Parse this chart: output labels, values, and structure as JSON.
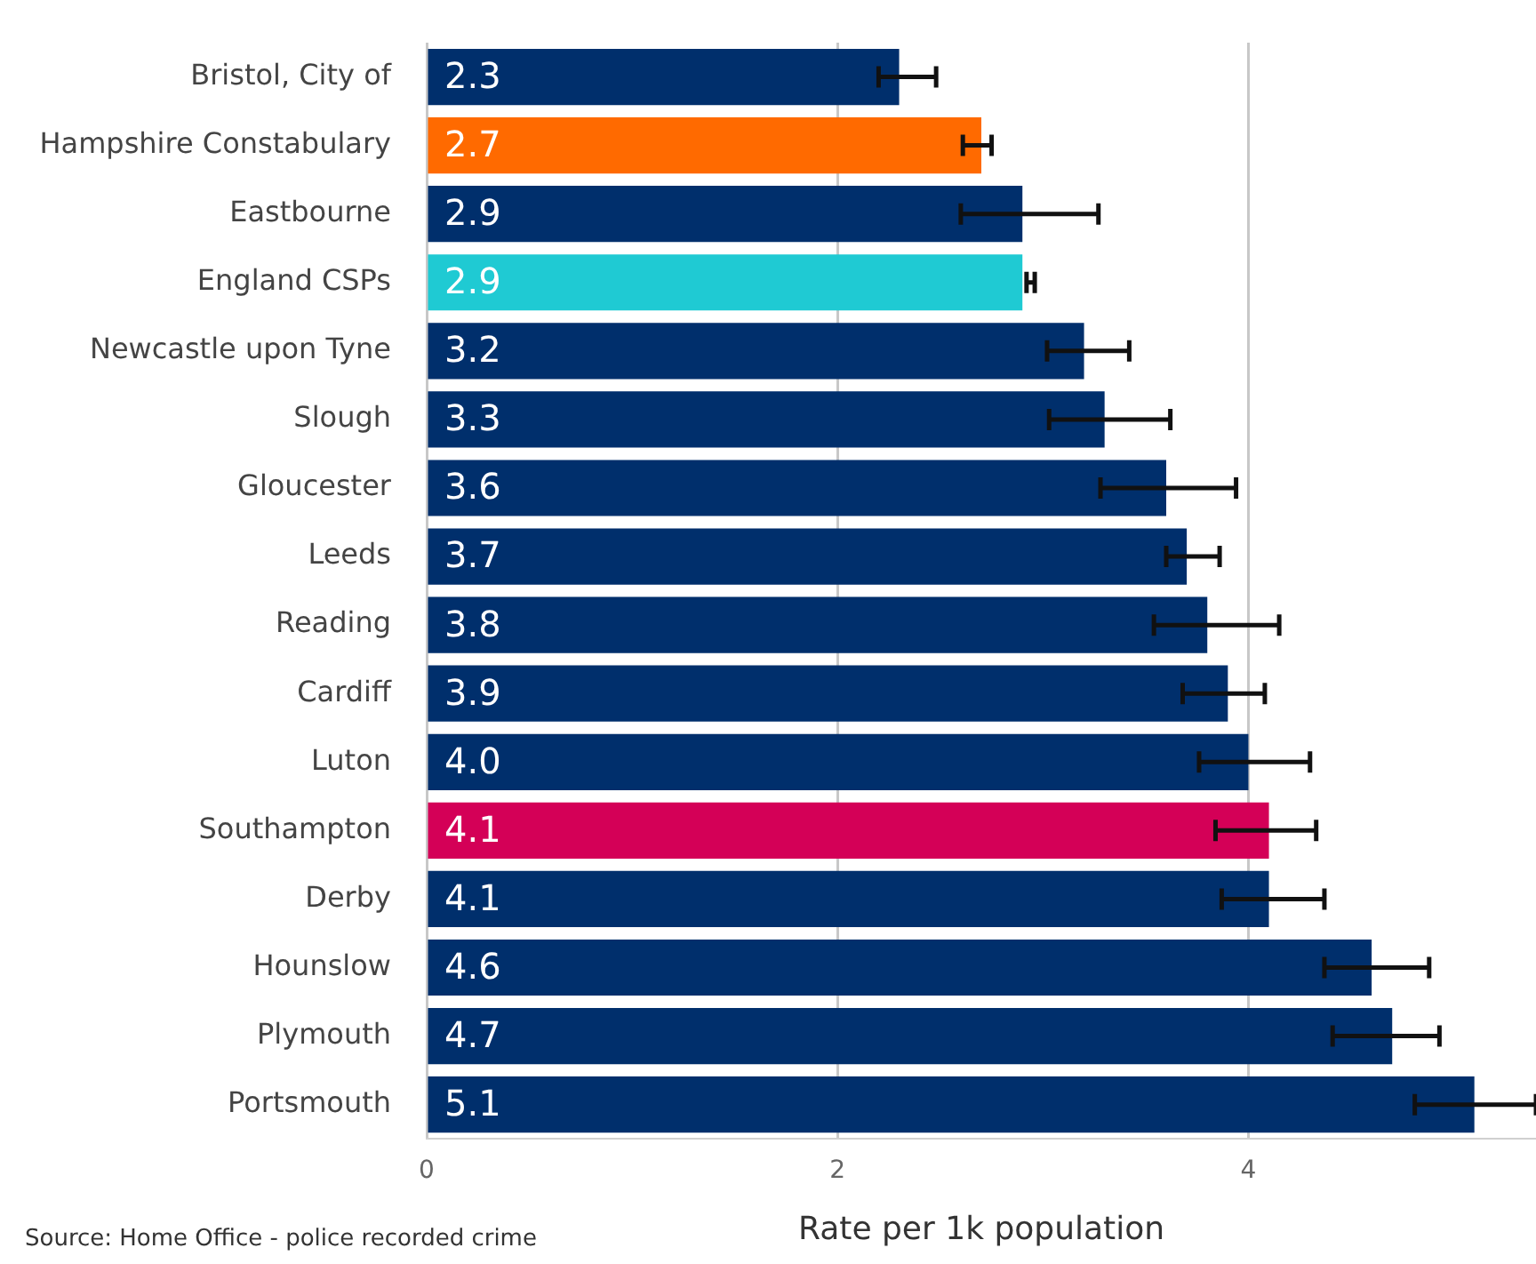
{
  "chart_data": {
    "type": "bar",
    "orientation": "horizontal",
    "xlabel": "Rate per 1k population",
    "annotations": [
      "Source: Home Office - police recorded crime"
    ],
    "categories": [
      "Bristol, City of",
      "Hampshire Constabulary",
      "Eastbourne",
      "England CSPs",
      "Newcastle upon Tyne",
      "Slough",
      "Gloucester",
      "Leeds",
      "Reading",
      "Cardiff",
      "Luton",
      "Southampton",
      "Derby",
      "Hounslow",
      "Plymouth",
      "Portsmouth"
    ],
    "values": [
      2.3,
      2.7,
      2.9,
      2.9,
      3.2,
      3.3,
      3.6,
      3.7,
      3.8,
      3.9,
      4.0,
      4.1,
      4.1,
      4.6,
      4.7,
      5.1
    ],
    "colors": [
      "#002f6c",
      "#ff6a00",
      "#002f6c",
      "#1fcad3",
      "#002f6c",
      "#002f6c",
      "#002f6c",
      "#002f6c",
      "#002f6c",
      "#002f6c",
      "#002f6c",
      "#d40057",
      "#002f6c",
      "#002f6c",
      "#002f6c",
      "#002f6c"
    ],
    "errors": [
      [
        2.2,
        2.48
      ],
      [
        2.61,
        2.75
      ],
      [
        2.6,
        3.27
      ],
      [
        2.92,
        2.96
      ],
      [
        3.02,
        3.42
      ],
      [
        3.03,
        3.62
      ],
      [
        3.28,
        3.94
      ],
      [
        3.6,
        3.86
      ],
      [
        3.54,
        4.15
      ],
      [
        3.68,
        4.08
      ],
      [
        3.76,
        4.3
      ],
      [
        3.84,
        4.33
      ],
      [
        3.87,
        4.37
      ],
      [
        4.37,
        4.88
      ],
      [
        4.41,
        4.93
      ],
      [
        4.81,
        5.4
      ]
    ],
    "value_labels": [
      "2.3",
      "2.7",
      "2.9",
      "2.9",
      "3.2",
      "3.3",
      "3.6",
      "3.7",
      "3.8",
      "3.9",
      "4.0",
      "4.1",
      "4.1",
      "4.6",
      "4.7",
      "5.1"
    ],
    "xlim": [
      0,
      5.4
    ],
    "xticks": [
      0,
      2,
      4
    ],
    "grid": "x"
  }
}
